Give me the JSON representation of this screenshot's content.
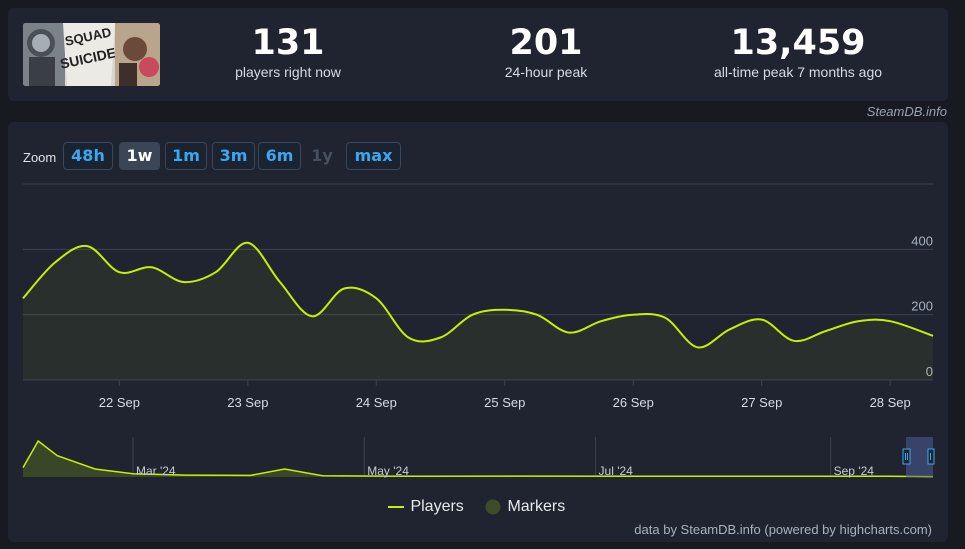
{
  "stats": [
    {
      "value": "131",
      "label": "players right now"
    },
    {
      "value": "201",
      "label": "24-hour peak"
    },
    {
      "value": "13,459",
      "label": "all-time peak 7 months ago"
    }
  ],
  "game_art_text": "SUICIDE SQUAD",
  "credit_top": "SteamDB.info",
  "zoom": {
    "label": "Zoom",
    "buttons": [
      {
        "label": "48h",
        "state": "normal"
      },
      {
        "label": "1w",
        "state": "active"
      },
      {
        "label": "1m",
        "state": "normal"
      },
      {
        "label": "3m",
        "state": "normal"
      },
      {
        "label": "6m",
        "state": "normal"
      },
      {
        "label": "1y",
        "state": "disabled"
      },
      {
        "label": "max",
        "state": "normal"
      }
    ]
  },
  "legend": {
    "players": "Players",
    "markers": "Markers"
  },
  "credit_bottom": "data by SteamDB.info (powered by highcharts.com)",
  "colors": {
    "series": "#c6f000",
    "grid": "#3a4150",
    "panel": "#1f2430",
    "button_text": "#3ba7f0",
    "marker": "#3e4c27"
  },
  "chart_data": [
    {
      "type": "line",
      "x_unit": "date",
      "x_range": [
        "21 Sep 06:00",
        "28 Sep 08:00"
      ],
      "x_ticks": [
        "22 Sep",
        "23 Sep",
        "24 Sep",
        "25 Sep",
        "26 Sep",
        "27 Sep",
        "28 Sep"
      ],
      "y_ticks": [
        0,
        200,
        400
      ],
      "ylim": [
        0,
        600
      ],
      "y_axis_side": "right",
      "grid": true,
      "legend_position": "bottom-center",
      "series": [
        {
          "name": "Players",
          "x": [
            "21 Sep 06:00",
            "21 Sep 12:00",
            "21 Sep 18:00",
            "22 Sep 00:00",
            "22 Sep 06:00",
            "22 Sep 12:00",
            "22 Sep 18:00",
            "23 Sep 00:00",
            "23 Sep 06:00",
            "23 Sep 12:00",
            "23 Sep 18:00",
            "24 Sep 00:00",
            "24 Sep 06:00",
            "24 Sep 12:00",
            "24 Sep 18:00",
            "25 Sep 00:00",
            "25 Sep 06:00",
            "25 Sep 12:00",
            "25 Sep 18:00",
            "26 Sep 00:00",
            "26 Sep 06:00",
            "26 Sep 12:00",
            "26 Sep 18:00",
            "27 Sep 00:00",
            "27 Sep 06:00",
            "27 Sep 12:00",
            "27 Sep 18:00",
            "28 Sep 00:00",
            "28 Sep 08:00"
          ],
          "y": [
            250,
            360,
            410,
            330,
            345,
            300,
            330,
            420,
            300,
            195,
            280,
            250,
            130,
            130,
            200,
            215,
            200,
            145,
            180,
            200,
            190,
            100,
            155,
            185,
            120,
            150,
            180,
            180,
            135
          ]
        },
        {
          "name": "Markers",
          "x": [],
          "y": []
        }
      ]
    },
    {
      "type": "area",
      "x_unit": "date",
      "x_ticks": [
        "Mar '24",
        "May '24",
        "Jul '24",
        "Sep '24"
      ],
      "series": [
        {
          "name": "Players",
          "x": [
            "Feb 1",
            "Feb 5",
            "Feb 10",
            "Feb 20",
            "Mar 1",
            "Mar 15",
            "Apr 1",
            "Apr 10",
            "Apr 20",
            "May 15",
            "Jun 15",
            "Jul 15",
            "Aug 15",
            "Sep 15",
            "Sep 28"
          ],
          "y": [
            3500,
            13459,
            8000,
            3000,
            1200,
            700,
            600,
            3000,
            500,
            250,
            350,
            250,
            250,
            300,
            131
          ]
        }
      ]
    }
  ]
}
